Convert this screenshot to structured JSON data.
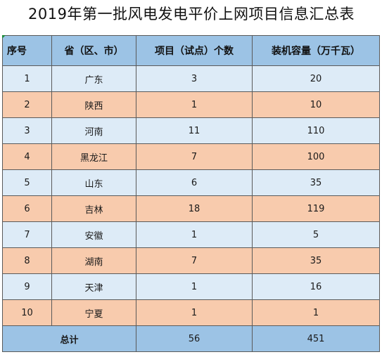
{
  "title": "2019年第一批风电发电平价上网项目信息汇总表",
  "header": {
    "col_index": "序号",
    "col_region": "省（区、市）",
    "col_projects": "项目（试点）个数",
    "col_capacity": "装机容量（万千瓦）"
  },
  "rows": [
    {
      "index": "1",
      "region": "广东",
      "projects": "3",
      "capacity": "20"
    },
    {
      "index": "2",
      "region": "陕西",
      "projects": "1",
      "capacity": "10"
    },
    {
      "index": "3",
      "region": "河南",
      "projects": "11",
      "capacity": "110"
    },
    {
      "index": "4",
      "region": "黑龙江",
      "projects": "7",
      "capacity": "100"
    },
    {
      "index": "5",
      "region": "山东",
      "projects": "6",
      "capacity": "35"
    },
    {
      "index": "6",
      "region": "吉林",
      "projects": "18",
      "capacity": "119"
    },
    {
      "index": "7",
      "region": "安徽",
      "projects": "1",
      "capacity": "5"
    },
    {
      "index": "8",
      "region": "湖南",
      "projects": "7",
      "capacity": "35"
    },
    {
      "index": "9",
      "region": "天津",
      "projects": "1",
      "capacity": "16"
    },
    {
      "index": "10",
      "region": "宁夏",
      "projects": "1",
      "capacity": "1"
    }
  ],
  "total": {
    "label": "总计",
    "projects": "56",
    "capacity": "451"
  },
  "colors": {
    "header_bg": "#9cc3e5",
    "row_blue": "#ddebf7",
    "row_orange": "#f8cbad"
  }
}
